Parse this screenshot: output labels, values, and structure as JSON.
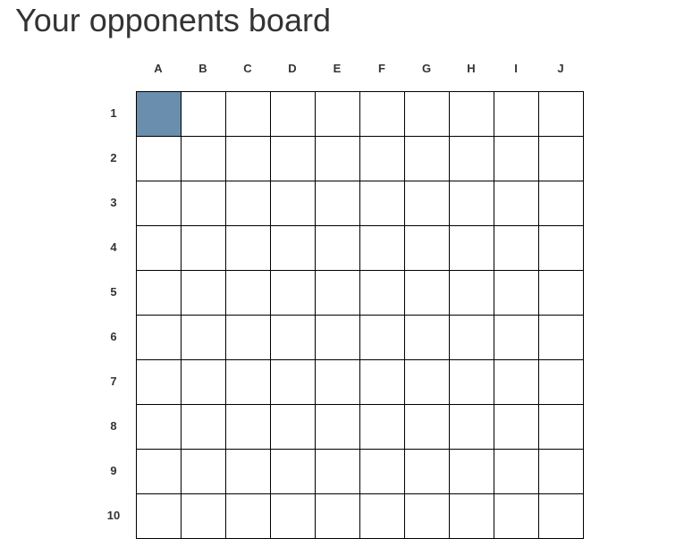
{
  "title": "Your opponents board",
  "board": {
    "columns": [
      "A",
      "B",
      "C",
      "D",
      "E",
      "F",
      "G",
      "H",
      "I",
      "J"
    ],
    "rows": [
      "1",
      "2",
      "3",
      "4",
      "5",
      "6",
      "7",
      "8",
      "9",
      "10"
    ],
    "selected_cells": [
      "A1"
    ],
    "colors": {
      "selected": "#6a8fae",
      "empty": "#ffffff",
      "grid_line": "#000000"
    }
  }
}
